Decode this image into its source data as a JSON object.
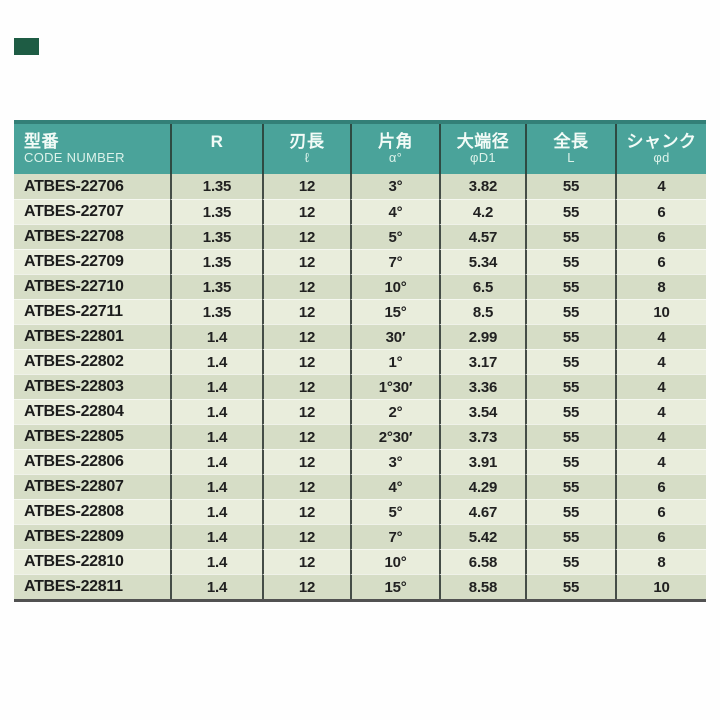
{
  "page": {
    "background": "#ffffff",
    "corner_mark_color": "#1e5c44"
  },
  "table": {
    "header_bg": "#4aa39a",
    "header_top_border": "#337f77",
    "header_text_color": "#f2fbf7",
    "row_color_dark": "#d6ddc6",
    "row_color_light": "#e9eddc",
    "columns": [
      {
        "key": "code-number",
        "label_ja": "型番",
        "label_sub": "CODE NUMBER"
      },
      {
        "key": "r",
        "label_ja": "R",
        "label_sub": ""
      },
      {
        "key": "blade-length",
        "label_ja": "刃長",
        "label_sub": "ℓ"
      },
      {
        "key": "half-angle",
        "label_ja": "片角",
        "label_sub": "α°"
      },
      {
        "key": "large-end-dia",
        "label_ja": "大端径",
        "label_sub": "φD1"
      },
      {
        "key": "overall-length",
        "label_ja": "全長",
        "label_sub": "L"
      },
      {
        "key": "shank",
        "label_ja": "シャンク",
        "label_sub": "φd"
      }
    ],
    "rows": [
      [
        "ATBES-22706",
        "1.35",
        "12",
        "3°",
        "3.82",
        "55",
        "4"
      ],
      [
        "ATBES-22707",
        "1.35",
        "12",
        "4°",
        "4.2",
        "55",
        "6"
      ],
      [
        "ATBES-22708",
        "1.35",
        "12",
        "5°",
        "4.57",
        "55",
        "6"
      ],
      [
        "ATBES-22709",
        "1.35",
        "12",
        "7°",
        "5.34",
        "55",
        "6"
      ],
      [
        "ATBES-22710",
        "1.35",
        "12",
        "10°",
        "6.5",
        "55",
        "8"
      ],
      [
        "ATBES-22711",
        "1.35",
        "12",
        "15°",
        "8.5",
        "55",
        "10"
      ],
      [
        "ATBES-22801",
        "1.4",
        "12",
        "30′",
        "2.99",
        "55",
        "4"
      ],
      [
        "ATBES-22802",
        "1.4",
        "12",
        "1°",
        "3.17",
        "55",
        "4"
      ],
      [
        "ATBES-22803",
        "1.4",
        "12",
        "1°30′",
        "3.36",
        "55",
        "4"
      ],
      [
        "ATBES-22804",
        "1.4",
        "12",
        "2°",
        "3.54",
        "55",
        "4"
      ],
      [
        "ATBES-22805",
        "1.4",
        "12",
        "2°30′",
        "3.73",
        "55",
        "4"
      ],
      [
        "ATBES-22806",
        "1.4",
        "12",
        "3°",
        "3.91",
        "55",
        "4"
      ],
      [
        "ATBES-22807",
        "1.4",
        "12",
        "4°",
        "4.29",
        "55",
        "6"
      ],
      [
        "ATBES-22808",
        "1.4",
        "12",
        "5°",
        "4.67",
        "55",
        "6"
      ],
      [
        "ATBES-22809",
        "1.4",
        "12",
        "7°",
        "5.42",
        "55",
        "6"
      ],
      [
        "ATBES-22810",
        "1.4",
        "12",
        "10°",
        "6.58",
        "55",
        "8"
      ],
      [
        "ATBES-22811",
        "1.4",
        "12",
        "15°",
        "8.58",
        "55",
        "10"
      ]
    ]
  }
}
